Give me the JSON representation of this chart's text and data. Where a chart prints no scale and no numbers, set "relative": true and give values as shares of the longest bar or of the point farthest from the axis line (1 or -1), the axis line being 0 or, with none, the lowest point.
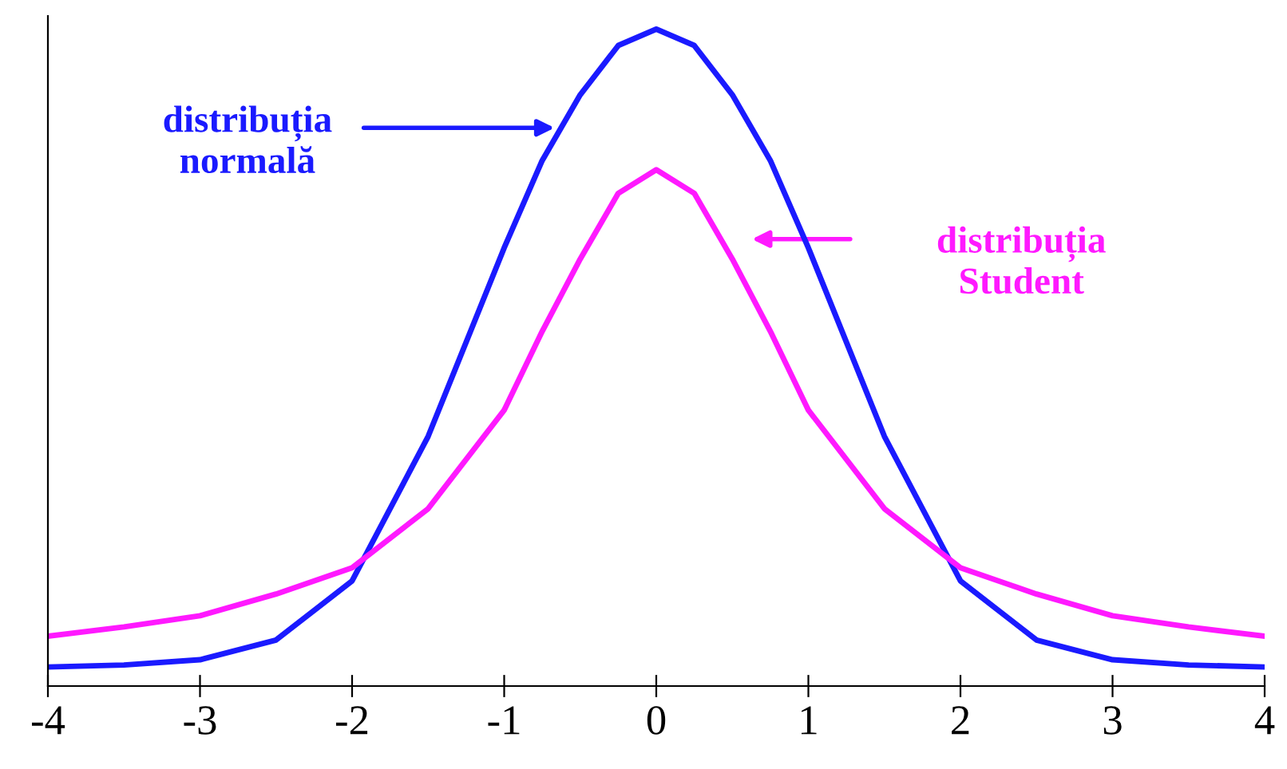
{
  "chart_data": {
    "type": "line",
    "relative": true,
    "xlim": [
      -4,
      4
    ],
    "xticks": [
      -4,
      -3,
      -2,
      -1,
      0,
      1,
      2,
      3,
      4
    ],
    "grid": false,
    "marker": "none",
    "line_style": "solid",
    "series": [
      {
        "name": "distribuția\nnormală",
        "color": "#1a1aff",
        "x": [
          -4,
          -3.5,
          -3,
          -2.5,
          -2,
          -1.5,
          -1,
          -0.75,
          -0.5,
          -0.25,
          0,
          0.25,
          0.5,
          0.75,
          1,
          1.5,
          2,
          2.5,
          3,
          3.5,
          4
        ],
        "values": [
          0.029,
          0.032,
          0.04,
          0.07,
          0.16,
          0.38,
          0.667,
          0.8,
          0.9,
          0.975,
          1,
          0.975,
          0.9,
          0.8,
          0.667,
          0.38,
          0.16,
          0.07,
          0.04,
          0.032,
          0.029
        ]
      },
      {
        "name": "distribuția\nStudent",
        "color": "#ff19ff",
        "x": [
          -4,
          -3.5,
          -3,
          -2.5,
          -2,
          -1.5,
          -1,
          -0.75,
          -0.5,
          -0.25,
          0,
          0.25,
          0.5,
          0.75,
          1,
          1.5,
          2,
          2.5,
          3,
          3.5,
          4
        ],
        "values": [
          0.076,
          0.09,
          0.107,
          0.14,
          0.18,
          0.27,
          0.42,
          0.54,
          0.65,
          0.75,
          0.786,
          0.75,
          0.65,
          0.54,
          0.42,
          0.27,
          0.18,
          0.14,
          0.107,
          0.09,
          0.076
        ]
      }
    ]
  }
}
